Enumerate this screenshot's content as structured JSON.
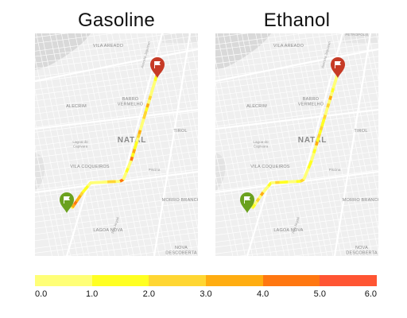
{
  "panels": [
    {
      "title": "Gasoline"
    },
    {
      "title": "Ethanol"
    }
  ],
  "map_labels": {
    "vila_areado": "VILA AREADO",
    "barro_vermelho": "BARRO\nVERMELHO",
    "alecrim": "ALECRIM",
    "tirol": "TIROL",
    "natal": "NATAL",
    "lagoa_capivara": "Lagoa do\nCapivara",
    "vila_coqueiros": "VILA COQUEIROS",
    "piscina": "Piscina",
    "morro_branco": "MORRO BRANCO",
    "lagoa_nova": "LAGOA NOVA",
    "nova_descoberta": "NOVA\nDESCOBERTA",
    "petropolis": "PETRÓPOLIS"
  },
  "markers": {
    "start": {
      "type": "start-flag-marker",
      "color": "#6aa11e"
    },
    "end": {
      "type": "end-flag-marker",
      "color": "#c63a25"
    }
  },
  "legend": {
    "colors": [
      "#ffff77",
      "#ffff22",
      "#ffd633",
      "#ffad11",
      "#ff7711",
      "#ff5533"
    ],
    "ticks": [
      "0.0",
      "1.0",
      "2.0",
      "3.0",
      "4.0",
      "5.0",
      "6.0"
    ]
  }
}
